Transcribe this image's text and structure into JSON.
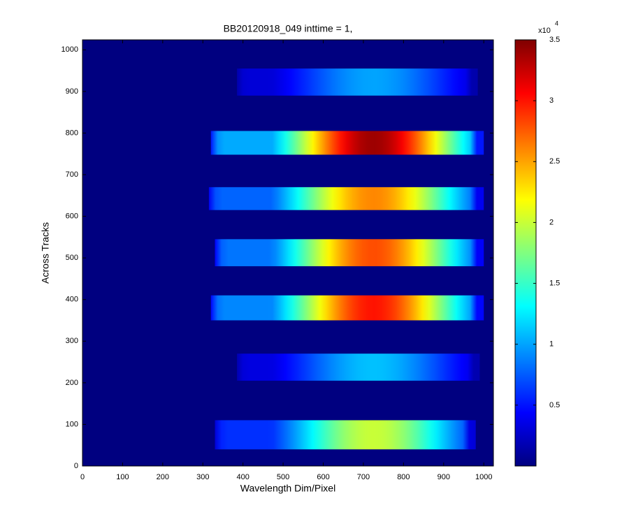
{
  "chart_data": {
    "type": "heatmap",
    "title": "BB20120918_049 inttime = 1,",
    "xlabel": "Wavelength Dim/Pixel",
    "ylabel": "Across Tracks",
    "xlim": [
      0,
      1024
    ],
    "ylim": [
      0,
      1024
    ],
    "xticks": [
      0,
      100,
      200,
      300,
      400,
      500,
      600,
      700,
      800,
      900,
      1000
    ],
    "yticks": [
      0,
      100,
      200,
      300,
      400,
      500,
      600,
      700,
      800,
      900,
      1000
    ],
    "colormap": "jet",
    "background": 0,
    "colorbar": {
      "lim": [
        0,
        3.5
      ],
      "ticks": [
        0.5,
        1,
        1.5,
        2,
        2.5,
        3,
        3.5
      ],
      "multiplier": "x10",
      "exponent": "4"
    },
    "tracks": [
      {
        "x": [
          330,
          980
        ],
        "y": [
          40,
          110
        ],
        "peak": 2.0
      },
      {
        "x": [
          385,
          990
        ],
        "y": [
          205,
          270
        ],
        "peak": 1.1
      },
      {
        "x": [
          320,
          1000
        ],
        "y": [
          350,
          410
        ],
        "peak": 3.0
      },
      {
        "x": [
          330,
          1000
        ],
        "y": [
          480,
          545
        ],
        "peak": 2.8
      },
      {
        "x": [
          315,
          1000
        ],
        "y": [
          615,
          670
        ],
        "peak": 2.6
      },
      {
        "x": [
          320,
          1000
        ],
        "y": [
          748,
          805
        ],
        "peak": 3.4
      },
      {
        "x": [
          385,
          985
        ],
        "y": [
          890,
          955
        ],
        "peak": 1.0
      }
    ]
  }
}
